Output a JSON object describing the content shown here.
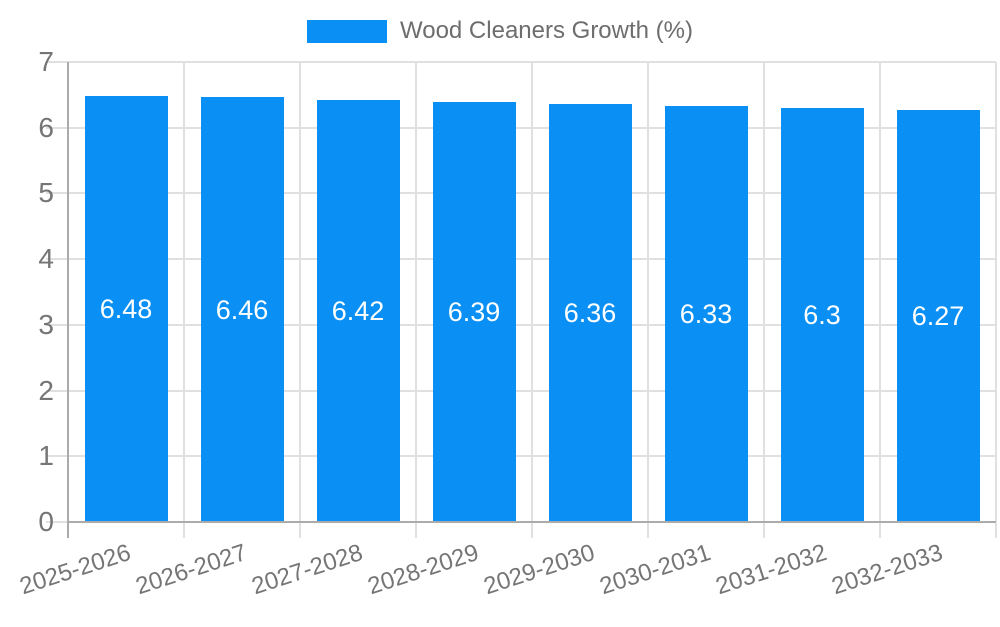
{
  "page": {
    "background": "#ffffff"
  },
  "legend": {
    "label": "Wood Cleaners Growth (%)"
  },
  "chart_data": {
    "type": "bar",
    "title": "Wood Cleaners Growth (%)",
    "categories": [
      "2025-2026",
      "2026-2027",
      "2027-2028",
      "2028-2029",
      "2029-2030",
      "2030-2031",
      "2031-2032",
      "2032-2033"
    ],
    "series": [
      {
        "name": "Wood Cleaners Growth (%)",
        "values": [
          6.48,
          6.46,
          6.42,
          6.39,
          6.36,
          6.33,
          6.3,
          6.27
        ],
        "value_labels": [
          "6.48",
          "6.46",
          "6.42",
          "6.39",
          "6.36",
          "6.33",
          "6.3",
          "6.27"
        ]
      }
    ],
    "xlabel": "",
    "ylabel": "",
    "ylim": [
      0,
      7
    ],
    "yticks": [
      "0",
      "1",
      "2",
      "3",
      "4",
      "5",
      "6",
      "7"
    ],
    "grid": true,
    "legend_position": "top-center",
    "bar_labels_inside": true,
    "colors": {
      "bar": "#0a90f5",
      "bar_label": "#ffffff",
      "grid": "#e0e0e0",
      "axis": "#ababab",
      "tick_text": "#757575",
      "legend_text": "#6d6d6d"
    }
  }
}
